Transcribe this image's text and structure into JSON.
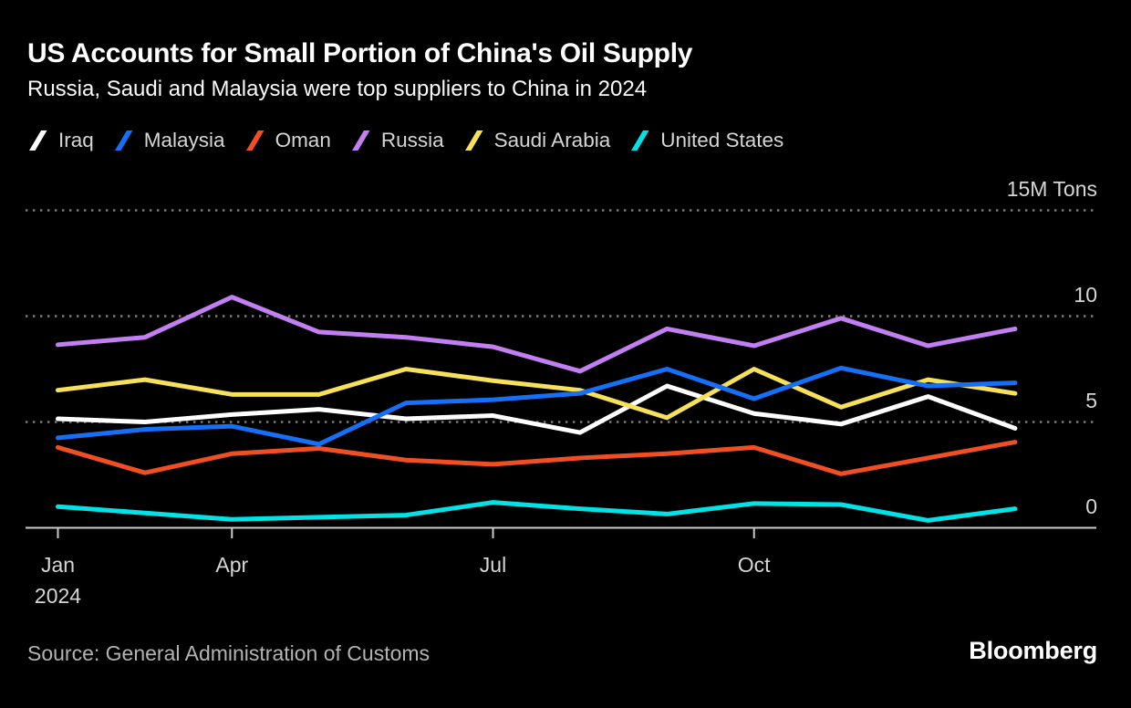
{
  "header": {
    "title": "US Accounts for Small Portion of China's Oil Supply",
    "subtitle": "Russia, Saudi and Malaysia were top suppliers to China in 2024"
  },
  "legend": [
    {
      "label": "Iraq",
      "color": "#ffffff"
    },
    {
      "label": "Malaysia",
      "color": "#156ff7"
    },
    {
      "label": "Oman",
      "color": "#f04f23"
    },
    {
      "label": "Russia",
      "color": "#c27ff2"
    },
    {
      "label": "Saudi Arabia",
      "color": "#f7e15a"
    },
    {
      "label": "United States",
      "color": "#00e2e6"
    }
  ],
  "chart_data": {
    "type": "line",
    "title": "US Accounts for Small Portion of China's Oil Supply",
    "unit": "M Tons",
    "ylim": [
      0,
      15
    ],
    "grid": "horizontal-dotted",
    "legend_position": "top",
    "n_points": 12,
    "x_ticks": [
      {
        "point_index": 0,
        "label": "Jan",
        "sublabel": "2024"
      },
      {
        "point_index": 2,
        "label": "Apr"
      },
      {
        "point_index": 5,
        "label": "Jul"
      },
      {
        "point_index": 8,
        "label": "Oct"
      }
    ],
    "y_ticks": [
      {
        "value": 15,
        "label": "15M Tons"
      },
      {
        "value": 10,
        "label": "10"
      },
      {
        "value": 5,
        "label": "5"
      },
      {
        "value": 0,
        "label": "0"
      }
    ],
    "series": [
      {
        "name": "Iraq",
        "color": "#ffffff",
        "values": [
          5.15,
          5.0,
          5.35,
          5.6,
          5.15,
          5.3,
          4.5,
          6.7,
          5.4,
          4.9,
          6.2,
          4.7
        ]
      },
      {
        "name": "Malaysia",
        "color": "#156ff7",
        "values": [
          4.25,
          4.65,
          4.8,
          3.95,
          5.9,
          6.05,
          6.35,
          7.5,
          6.1,
          7.55,
          6.7,
          6.85
        ]
      },
      {
        "name": "Oman",
        "color": "#f04f23",
        "values": [
          3.8,
          2.6,
          3.5,
          3.75,
          3.2,
          3.0,
          3.3,
          3.5,
          3.8,
          2.55,
          3.3,
          4.05
        ]
      },
      {
        "name": "Russia",
        "color": "#c27ff2",
        "values": [
          8.65,
          9.0,
          10.9,
          9.25,
          9.0,
          8.55,
          7.4,
          9.4,
          8.6,
          9.9,
          8.6,
          9.4
        ]
      },
      {
        "name": "Saudi Arabia",
        "color": "#f7e15a",
        "values": [
          6.5,
          7.0,
          6.3,
          6.3,
          7.5,
          6.95,
          6.5,
          5.2,
          7.5,
          5.7,
          7.0,
          6.35
        ]
      },
      {
        "name": "United States",
        "color": "#00e2e6",
        "values": [
          1.0,
          0.7,
          0.4,
          0.5,
          0.6,
          1.2,
          0.9,
          0.65,
          1.15,
          1.1,
          0.35,
          0.9
        ]
      }
    ],
    "draw_order": [
      "Oman",
      "Russia",
      "Iraq",
      "Saudi Arabia",
      "Malaysia",
      "United States"
    ]
  },
  "footer": {
    "source": "Source: General Administration of Customs",
    "brand": "Bloomberg"
  },
  "style": {
    "background": "#000000",
    "grid_color": "#7d7d7d",
    "axis_color": "#cbcbcb",
    "label_color": "#d6d6d6"
  }
}
